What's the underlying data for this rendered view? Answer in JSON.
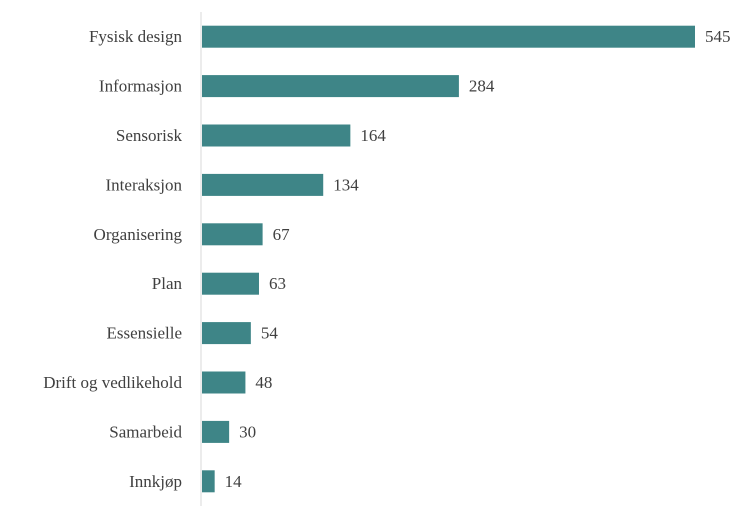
{
  "chart_data": {
    "type": "bar",
    "orientation": "horizontal",
    "categories": [
      "Fysisk design",
      "Informasjon",
      "Sensorisk",
      "Interaksjon",
      "Organisering",
      "Plan",
      "Essensielle",
      "Drift og vedlikehold",
      "Samarbeid",
      "Innkjøp"
    ],
    "values": [
      545,
      284,
      164,
      134,
      67,
      63,
      54,
      48,
      30,
      14
    ],
    "data_labels": [
      "545",
      "284",
      "164",
      "134",
      "67",
      "63",
      "54",
      "48",
      "30",
      "14"
    ],
    "xlim": [
      0,
      545
    ],
    "grid": false,
    "legend": "none",
    "bar_color": "#3e8587",
    "axis_color": "#d9d9d9",
    "text_color": "#404040"
  }
}
